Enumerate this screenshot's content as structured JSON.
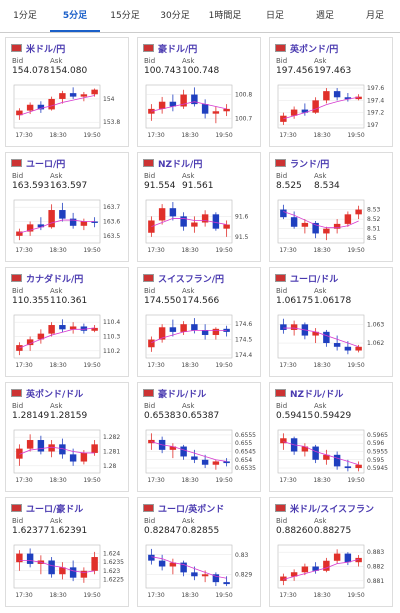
{
  "tabs": [
    "1分足",
    "5分足",
    "15分足",
    "30分足",
    "1時間足",
    "日足",
    "週足",
    "月足"
  ],
  "active_tab": 1,
  "labels": {
    "bid": "Bid",
    "ask": "Ask"
  },
  "xlabels": [
    "17:30",
    "18:30",
    "19:50"
  ],
  "up_color": "#e0302a",
  "down_color": "#1f3fbf",
  "ma_color": "#d63ad0",
  "panels": [
    {
      "title": "米ドル/円",
      "bid": "154.078",
      "ask": "154.080",
      "chart": {
        "ylim": [
          153.75,
          154.12
        ],
        "yticks": [
          154,
          153.8
        ],
        "candles": [
          [
            153.86,
            153.92,
            153.82,
            153.9
          ],
          [
            153.9,
            153.97,
            153.87,
            153.95
          ],
          [
            153.95,
            153.98,
            153.88,
            153.91
          ],
          [
            153.91,
            154.02,
            153.9,
            154.0
          ],
          [
            154.0,
            154.07,
            153.96,
            154.05
          ],
          [
            154.05,
            154.1,
            154.0,
            154.02
          ],
          [
            154.02,
            154.06,
            153.98,
            154.04
          ],
          [
            154.04,
            154.09,
            154.02,
            154.08
          ]
        ],
        "ma": [
          153.86,
          153.89,
          153.92,
          153.94,
          153.97,
          153.99,
          154.01,
          154.03
        ]
      }
    },
    {
      "title": "豪ドル/円",
      "bid": "100.743",
      "ask": "100.748",
      "chart": {
        "ylim": [
          100.66,
          100.84
        ],
        "yticks": [
          100.8,
          100.7
        ],
        "candles": [
          [
            100.72,
            100.76,
            100.69,
            100.74
          ],
          [
            100.74,
            100.79,
            100.72,
            100.77
          ],
          [
            100.77,
            100.8,
            100.73,
            100.75
          ],
          [
            100.75,
            100.82,
            100.74,
            100.8
          ],
          [
            100.8,
            100.83,
            100.75,
            100.76
          ],
          [
            100.76,
            100.78,
            100.7,
            100.72
          ],
          [
            100.72,
            100.75,
            100.68,
            100.73
          ],
          [
            100.73,
            100.76,
            100.71,
            100.74
          ]
        ],
        "ma": [
          100.73,
          100.74,
          100.75,
          100.76,
          100.77,
          100.76,
          100.75,
          100.74
        ]
      }
    },
    {
      "title": "英ポンド/円",
      "bid": "197.456",
      "ask": "197.463",
      "chart": {
        "ylim": [
          196.95,
          197.65
        ],
        "yticks": [
          197.6,
          197.4,
          197.2,
          197
        ],
        "candles": [
          [
            197.05,
            197.2,
            197.0,
            197.15
          ],
          [
            197.15,
            197.3,
            197.1,
            197.25
          ],
          [
            197.25,
            197.35,
            197.15,
            197.2
          ],
          [
            197.2,
            197.45,
            197.18,
            197.4
          ],
          [
            197.4,
            197.6,
            197.35,
            197.55
          ],
          [
            197.55,
            197.6,
            197.4,
            197.45
          ],
          [
            197.45,
            197.52,
            197.38,
            197.42
          ],
          [
            197.42,
            197.5,
            197.4,
            197.46
          ]
        ],
        "ma": [
          197.1,
          197.15,
          197.2,
          197.26,
          197.33,
          197.38,
          197.42,
          197.45
        ]
      }
    },
    {
      "title": "ユーロ/円",
      "bid": "163.593",
      "ask": "163.597",
      "chart": {
        "ylim": [
          163.45,
          163.75
        ],
        "yticks": [
          163.7,
          163.6,
          163.5
        ],
        "candles": [
          [
            163.5,
            163.55,
            163.47,
            163.53
          ],
          [
            163.53,
            163.6,
            163.5,
            163.58
          ],
          [
            163.58,
            163.63,
            163.54,
            163.56
          ],
          [
            163.56,
            163.72,
            163.55,
            163.68
          ],
          [
            163.68,
            163.73,
            163.6,
            163.62
          ],
          [
            163.62,
            163.66,
            163.55,
            163.57
          ],
          [
            163.57,
            163.62,
            163.54,
            163.6
          ],
          [
            163.6,
            163.63,
            163.56,
            163.59
          ]
        ],
        "ma": [
          163.52,
          163.54,
          163.56,
          163.59,
          163.61,
          163.61,
          163.6,
          163.6
        ]
      }
    },
    {
      "title": "NZドル/円",
      "bid": "91.554",
      "ask": "91.561",
      "chart": {
        "ylim": [
          91.47,
          91.68
        ],
        "yticks": [
          91.6,
          91.5
        ],
        "candles": [
          [
            91.52,
            91.6,
            91.5,
            91.58
          ],
          [
            91.58,
            91.66,
            91.56,
            91.64
          ],
          [
            91.64,
            91.67,
            91.58,
            91.6
          ],
          [
            91.6,
            91.62,
            91.53,
            91.55
          ],
          [
            91.55,
            91.6,
            91.52,
            91.57
          ],
          [
            91.57,
            91.63,
            91.55,
            91.61
          ],
          [
            91.61,
            91.62,
            91.53,
            91.54
          ],
          [
            91.54,
            91.58,
            91.5,
            91.56
          ]
        ],
        "ma": [
          91.55,
          91.57,
          91.59,
          91.59,
          91.58,
          91.58,
          91.57,
          91.56
        ]
      }
    },
    {
      "title": "ランド/円",
      "bid": "8.525",
      "ask": "8.534",
      "chart": {
        "ylim": [
          8.495,
          8.54
        ],
        "yticks": [
          8.53,
          8.52,
          8.51,
          8.5
        ],
        "candles": [
          [
            8.53,
            8.535,
            8.52,
            8.522
          ],
          [
            8.522,
            8.528,
            8.51,
            8.512
          ],
          [
            8.512,
            8.52,
            8.505,
            8.516
          ],
          [
            8.516,
            8.518,
            8.5,
            8.505
          ],
          [
            8.505,
            8.512,
            8.498,
            8.51
          ],
          [
            8.51,
            8.52,
            8.505,
            8.515
          ],
          [
            8.515,
            8.528,
            8.512,
            8.525
          ],
          [
            8.525,
            8.534,
            8.52,
            8.53
          ]
        ],
        "ma": [
          8.528,
          8.524,
          8.519,
          8.514,
          8.511,
          8.511,
          8.513,
          8.518
        ]
      }
    },
    {
      "title": "カナダドル/円",
      "bid": "110.355",
      "ask": "110.361",
      "chart": {
        "ylim": [
          110.15,
          110.45
        ],
        "yticks": [
          110.4,
          110.3,
          110.2
        ],
        "candles": [
          [
            110.2,
            110.26,
            110.17,
            110.24
          ],
          [
            110.24,
            110.3,
            110.2,
            110.28
          ],
          [
            110.28,
            110.35,
            110.25,
            110.32
          ],
          [
            110.32,
            110.4,
            110.3,
            110.38
          ],
          [
            110.38,
            110.42,
            110.33,
            110.35
          ],
          [
            110.35,
            110.4,
            110.32,
            110.37
          ],
          [
            110.37,
            110.39,
            110.32,
            110.34
          ],
          [
            110.34,
            110.38,
            110.33,
            110.36
          ]
        ],
        "ma": [
          110.22,
          110.25,
          110.28,
          110.31,
          110.33,
          110.35,
          110.35,
          110.36
        ]
      }
    },
    {
      "title": "スイスフラン/円",
      "bid": "174.550",
      "ask": "174.566",
      "chart": {
        "ylim": [
          174.38,
          174.66
        ],
        "yticks": [
          174.6,
          174.5,
          174.4
        ],
        "candles": [
          [
            174.45,
            174.52,
            174.42,
            174.5
          ],
          [
            174.5,
            174.6,
            174.48,
            174.58
          ],
          [
            174.58,
            174.63,
            174.52,
            174.55
          ],
          [
            174.55,
            174.62,
            174.53,
            174.6
          ],
          [
            174.6,
            174.64,
            174.54,
            174.56
          ],
          [
            174.56,
            174.6,
            174.5,
            174.53
          ],
          [
            174.53,
            174.58,
            174.5,
            174.57
          ],
          [
            174.57,
            174.59,
            174.52,
            174.55
          ]
        ],
        "ma": [
          174.48,
          174.51,
          174.53,
          174.55,
          174.56,
          174.56,
          174.56,
          174.56
        ]
      }
    },
    {
      "title": "ユーロ/ドル",
      "bid": "1.06175",
      "ask": "1.06178",
      "chart": {
        "ylim": [
          1.0612,
          1.0635
        ],
        "yticks": [
          1.063,
          1.062
        ],
        "candles": [
          [
            1.063,
            1.0633,
            1.0625,
            1.0627
          ],
          [
            1.0627,
            1.0632,
            1.0624,
            1.063
          ],
          [
            1.063,
            1.0631,
            1.0622,
            1.0624
          ],
          [
            1.0624,
            1.0628,
            1.062,
            1.0626
          ],
          [
            1.0626,
            1.0627,
            1.0618,
            1.062
          ],
          [
            1.062,
            1.0624,
            1.0616,
            1.0618
          ],
          [
            1.0618,
            1.0621,
            1.0614,
            1.0616
          ],
          [
            1.0616,
            1.0619,
            1.0615,
            1.0618
          ]
        ],
        "ma": [
          1.0628,
          1.0628,
          1.0627,
          1.0626,
          1.0624,
          1.0622,
          1.062,
          1.0618
        ]
      }
    },
    {
      "title": "英ポンド/ドル",
      "bid": "1.28149",
      "ask": "1.28159",
      "chart": {
        "ylim": [
          1.2795,
          1.2825
        ],
        "yticks": [
          1.282,
          1.281,
          1.28
        ],
        "candles": [
          [
            1.2805,
            1.2815,
            1.28,
            1.2812
          ],
          [
            1.2812,
            1.2822,
            1.281,
            1.2818
          ],
          [
            1.2818,
            1.2821,
            1.2808,
            1.281
          ],
          [
            1.281,
            1.2818,
            1.2806,
            1.2815
          ],
          [
            1.2815,
            1.2819,
            1.2805,
            1.2808
          ],
          [
            1.2808,
            1.2812,
            1.28,
            1.2803
          ],
          [
            1.2803,
            1.2811,
            1.2801,
            1.2809
          ],
          [
            1.2809,
            1.2818,
            1.2807,
            1.2815
          ]
        ],
        "ma": [
          1.2808,
          1.2811,
          1.2812,
          1.2813,
          1.2812,
          1.281,
          1.2809,
          1.2809
        ]
      }
    },
    {
      "title": "豪ドル/ドル",
      "bid": "0.65383",
      "ask": "0.65387",
      "chart": {
        "ylim": [
          0.6532,
          0.6558
        ],
        "yticks": [
          0.6555,
          0.655,
          0.6545,
          0.654,
          0.6535
        ],
        "candles": [
          [
            0.655,
            0.6556,
            0.6546,
            0.6552
          ],
          [
            0.6552,
            0.6554,
            0.6544,
            0.6546
          ],
          [
            0.6546,
            0.655,
            0.6541,
            0.6548
          ],
          [
            0.6548,
            0.6549,
            0.654,
            0.6542
          ],
          [
            0.6542,
            0.6546,
            0.6538,
            0.654
          ],
          [
            0.654,
            0.6543,
            0.6535,
            0.6537
          ],
          [
            0.6537,
            0.654,
            0.6534,
            0.6539
          ],
          [
            0.6539,
            0.6541,
            0.6536,
            0.6538
          ]
        ],
        "ma": [
          0.6551,
          0.6549,
          0.6548,
          0.6546,
          0.6544,
          0.6542,
          0.654,
          0.6539
        ]
      }
    },
    {
      "title": "NZドル/ドル",
      "bid": "0.59415",
      "ask": "0.59429",
      "chart": {
        "ylim": [
          0.5942,
          0.5968
        ],
        "yticks": [
          0.5965,
          0.596,
          0.5955,
          0.595,
          0.5945
        ],
        "candles": [
          [
            0.596,
            0.5966,
            0.5956,
            0.5963
          ],
          [
            0.5963,
            0.5964,
            0.5953,
            0.5955
          ],
          [
            0.5955,
            0.596,
            0.5952,
            0.5958
          ],
          [
            0.5958,
            0.5959,
            0.5948,
            0.595
          ],
          [
            0.595,
            0.5956,
            0.5947,
            0.5953
          ],
          [
            0.5953,
            0.5955,
            0.5944,
            0.5946
          ],
          [
            0.5946,
            0.595,
            0.5943,
            0.5945
          ],
          [
            0.5945,
            0.5949,
            0.5943,
            0.5947
          ]
        ],
        "ma": [
          0.5961,
          0.5959,
          0.5958,
          0.5955,
          0.5953,
          0.5951,
          0.5949,
          0.5947
        ]
      }
    },
    {
      "title": "ユーロ/豪ドル",
      "bid": "1.62377",
      "ask": "1.62391",
      "chart": {
        "ylim": [
          1.622,
          1.6245
        ],
        "yticks": [
          1.624,
          1.6235,
          1.623,
          1.6225
        ],
        "candles": [
          [
            1.6235,
            1.6242,
            1.623,
            1.624
          ],
          [
            1.624,
            1.6243,
            1.6232,
            1.6234
          ],
          [
            1.6234,
            1.6239,
            1.6228,
            1.6236
          ],
          [
            1.6236,
            1.6238,
            1.6226,
            1.6228
          ],
          [
            1.6228,
            1.6235,
            1.6225,
            1.6232
          ],
          [
            1.6232,
            1.6236,
            1.6224,
            1.6226
          ],
          [
            1.6226,
            1.6232,
            1.6223,
            1.623
          ],
          [
            1.623,
            1.6241,
            1.6228,
            1.6238
          ]
        ],
        "ma": [
          1.6236,
          1.6236,
          1.6235,
          1.6233,
          1.6232,
          1.623,
          1.6229,
          1.623
        ]
      }
    },
    {
      "title": "ユーロ/英ポンド",
      "bid": "0.82847",
      "ask": "0.82855",
      "chart": {
        "ylim": [
          0.8283,
          0.8305
        ],
        "yticks": [
          0.83,
          0.829
        ],
        "candles": [
          [
            0.83,
            0.8303,
            0.8295,
            0.8297
          ],
          [
            0.8297,
            0.83,
            0.8292,
            0.8294
          ],
          [
            0.8294,
            0.8298,
            0.829,
            0.8296
          ],
          [
            0.8296,
            0.8297,
            0.8289,
            0.8291
          ],
          [
            0.8291,
            0.8294,
            0.8287,
            0.8289
          ],
          [
            0.8289,
            0.8292,
            0.8286,
            0.829
          ],
          [
            0.829,
            0.8291,
            0.8284,
            0.8286
          ],
          [
            0.8286,
            0.8289,
            0.8284,
            0.8285
          ]
        ],
        "ma": [
          0.8299,
          0.8298,
          0.8296,
          0.8295,
          0.8293,
          0.8291,
          0.8289,
          0.8288
        ]
      }
    },
    {
      "title": "米ドル/スイスフラン",
      "bid": "0.88260",
      "ask": "0.88275",
      "chart": {
        "ylim": [
          0.8805,
          0.8835
        ],
        "yticks": [
          0.883,
          0.882,
          0.881
        ],
        "candles": [
          [
            0.881,
            0.8815,
            0.8807,
            0.8813
          ],
          [
            0.8813,
            0.8818,
            0.881,
            0.8816
          ],
          [
            0.8816,
            0.8822,
            0.8814,
            0.882
          ],
          [
            0.882,
            0.8823,
            0.8815,
            0.8817
          ],
          [
            0.8817,
            0.8826,
            0.8816,
            0.8824
          ],
          [
            0.8824,
            0.8832,
            0.8822,
            0.8829
          ],
          [
            0.8829,
            0.883,
            0.8821,
            0.8823
          ],
          [
            0.8823,
            0.8828,
            0.882,
            0.8826
          ]
        ],
        "ma": [
          0.8811,
          0.8813,
          0.8815,
          0.8817,
          0.8819,
          0.8822,
          0.8823,
          0.8825
        ]
      }
    }
  ]
}
